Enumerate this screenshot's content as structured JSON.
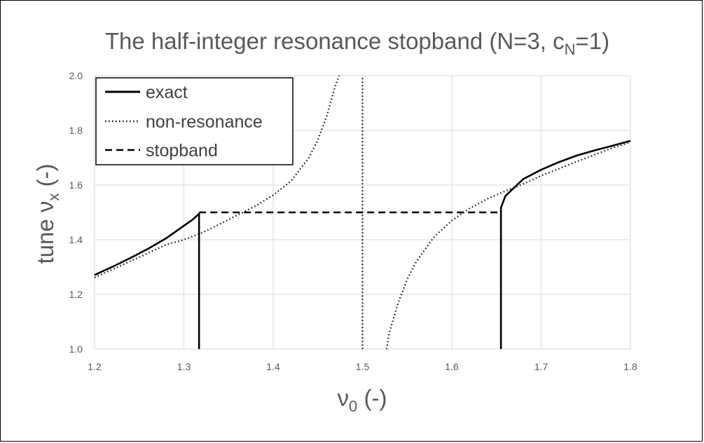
{
  "chart_data": {
    "type": "line",
    "title": {
      "main": "The half-integer resonance stopband (N=3, c",
      "sub": "N",
      "tail": "=1)"
    },
    "xlabel": {
      "main": "ν",
      "sub": "0",
      "tail": " (-)"
    },
    "ylabel": {
      "main": "tune ν",
      "sub": "x",
      "tail": " (-)"
    },
    "xlim": [
      1.2,
      1.8
    ],
    "ylim": [
      1.0,
      2.0
    ],
    "x_ticks": [
      "1.2",
      "1.3",
      "1.4",
      "1.5",
      "1.6",
      "1.7",
      "1.8"
    ],
    "y_ticks": [
      "1.0",
      "1.2",
      "1.4",
      "1.6",
      "1.8",
      "2.0"
    ],
    "grid": true,
    "legend_position": "top-left",
    "series": [
      {
        "name": "exact",
        "style": "solid",
        "segments": [
          [
            [
              1.2,
              1.271
            ],
            [
              1.22,
              1.301
            ],
            [
              1.24,
              1.333
            ],
            [
              1.26,
              1.367
            ],
            [
              1.28,
              1.405
            ],
            [
              1.3,
              1.451
            ],
            [
              1.31,
              1.474
            ],
            [
              1.317,
              1.495
            ],
            [
              1.317,
              1.0
            ]
          ],
          [
            [
              1.655,
              1.0
            ],
            [
              1.655,
              1.517
            ],
            [
              1.66,
              1.56
            ],
            [
              1.68,
              1.622
            ],
            [
              1.7,
              1.656
            ],
            [
              1.72,
              1.684
            ],
            [
              1.74,
              1.708
            ],
            [
              1.76,
              1.727
            ],
            [
              1.78,
              1.744
            ],
            [
              1.8,
              1.762
            ]
          ]
        ]
      },
      {
        "name": "non-resonance",
        "style": "dotted",
        "segments": [
          [
            [
              1.2,
              1.262
            ],
            [
              1.22,
              1.291
            ],
            [
              1.24,
              1.321
            ],
            [
              1.26,
              1.351
            ],
            [
              1.28,
              1.382
            ],
            [
              1.3,
              1.4
            ],
            [
              1.32,
              1.425
            ],
            [
              1.34,
              1.457
            ],
            [
              1.36,
              1.49
            ],
            [
              1.38,
              1.523
            ],
            [
              1.4,
              1.563
            ],
            [
              1.42,
              1.615
            ],
            [
              1.44,
              1.7
            ],
            [
              1.45,
              1.765
            ],
            [
              1.46,
              1.852
            ],
            [
              1.47,
              1.968
            ],
            [
              1.474,
              2.0
            ]
          ],
          [
            [
              1.5,
              1.0
            ],
            [
              1.5,
              2.0
            ]
          ],
          [
            [
              1.527,
              1.0
            ],
            [
              1.53,
              1.06
            ],
            [
              1.54,
              1.17
            ],
            [
              1.55,
              1.255
            ],
            [
              1.56,
              1.319
            ],
            [
              1.58,
              1.41
            ],
            [
              1.6,
              1.47
            ],
            [
              1.62,
              1.515
            ],
            [
              1.64,
              1.55
            ],
            [
              1.66,
              1.578
            ],
            [
              1.68,
              1.604
            ],
            [
              1.7,
              1.634
            ],
            [
              1.72,
              1.66
            ],
            [
              1.74,
              1.686
            ],
            [
              1.76,
              1.711
            ],
            [
              1.78,
              1.736
            ],
            [
              1.8,
              1.757
            ]
          ]
        ]
      },
      {
        "name": "stopband",
        "style": "dashed",
        "segments": [
          [
            [
              1.317,
              1.5
            ],
            [
              1.655,
              1.5
            ]
          ]
        ]
      }
    ]
  }
}
